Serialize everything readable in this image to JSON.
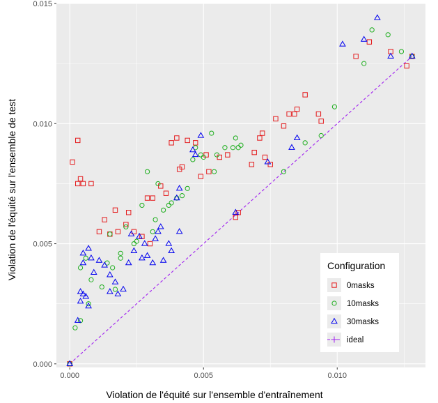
{
  "chart_data": {
    "type": "scatter",
    "xlabel": "Violation de l'équité sur l'ensemble d'entraînement",
    "ylabel": "Violation de l'équité sur l'ensemble de test",
    "xlim": [
      -0.0005,
      0.0133
    ],
    "ylim": [
      -0.00015,
      0.015
    ],
    "x_ticks": [
      0.0,
      0.005,
      0.01
    ],
    "x_tick_labels": [
      "0.000",
      "0.005",
      "0.010"
    ],
    "y_ticks": [
      0.0,
      0.005,
      0.01,
      0.015
    ],
    "y_tick_labels": [
      "0.000",
      "0.005",
      "0.010",
      "0.015"
    ],
    "grid": true,
    "legend": {
      "title": "Configuration",
      "placement": "bottom-right",
      "entries": [
        {
          "label": "0masks",
          "color": "#e41a1c",
          "shape": "square"
        },
        {
          "label": "10masks",
          "color": "#1fae1f",
          "shape": "circle"
        },
        {
          "label": "30masks",
          "color": "#0000ee",
          "shape": "triangle"
        },
        {
          "label": "ideal",
          "color": "#a020f0",
          "shape": "cross"
        }
      ]
    },
    "series": [
      {
        "name": "0masks",
        "color": "#e41a1c",
        "shape": "square",
        "points": [
          [
            0.0,
            0.0
          ],
          [
            0.0001,
            0.0084
          ],
          [
            0.0003,
            0.0093
          ],
          [
            0.0003,
            0.0075
          ],
          [
            0.0004,
            0.0077
          ],
          [
            0.0005,
            0.0075
          ],
          [
            0.0008,
            0.0075
          ],
          [
            0.0011,
            0.0055
          ],
          [
            0.0013,
            0.006
          ],
          [
            0.0015,
            0.0054
          ],
          [
            0.0017,
            0.0064
          ],
          [
            0.0018,
            0.0055
          ],
          [
            0.0021,
            0.0058
          ],
          [
            0.0022,
            0.0063
          ],
          [
            0.0024,
            0.0055
          ],
          [
            0.0027,
            0.0053
          ],
          [
            0.0029,
            0.0069
          ],
          [
            0.003,
            0.005
          ],
          [
            0.0031,
            0.0069
          ],
          [
            0.0034,
            0.0074
          ],
          [
            0.0036,
            0.0071
          ],
          [
            0.0038,
            0.0092
          ],
          [
            0.004,
            0.0094
          ],
          [
            0.0041,
            0.0081
          ],
          [
            0.0042,
            0.0082
          ],
          [
            0.0044,
            0.0093
          ],
          [
            0.0047,
            0.0092
          ],
          [
            0.0049,
            0.0078
          ],
          [
            0.0051,
            0.0087
          ],
          [
            0.0052,
            0.008
          ],
          [
            0.0056,
            0.0086
          ],
          [
            0.0059,
            0.0087
          ],
          [
            0.0062,
            0.0061
          ],
          [
            0.0063,
            0.0063
          ],
          [
            0.0068,
            0.0083
          ],
          [
            0.0069,
            0.0088
          ],
          [
            0.0071,
            0.0094
          ],
          [
            0.0072,
            0.0096
          ],
          [
            0.0073,
            0.0086
          ],
          [
            0.0075,
            0.0083
          ],
          [
            0.0077,
            0.0102
          ],
          [
            0.008,
            0.0099
          ],
          [
            0.0082,
            0.0104
          ],
          [
            0.0084,
            0.0104
          ],
          [
            0.0085,
            0.0106
          ],
          [
            0.0088,
            0.0112
          ],
          [
            0.0093,
            0.0104
          ],
          [
            0.0094,
            0.0101
          ],
          [
            0.0107,
            0.0128
          ],
          [
            0.0112,
            0.0134
          ],
          [
            0.012,
            0.013
          ],
          [
            0.0126,
            0.0124
          ],
          [
            0.0128,
            0.0128
          ]
        ]
      },
      {
        "name": "10masks",
        "color": "#1fae1f",
        "shape": "circle",
        "points": [
          [
            0.0,
            0.0
          ],
          [
            0.0002,
            0.0015
          ],
          [
            0.0004,
            0.0018
          ],
          [
            0.0004,
            0.004
          ],
          [
            0.0006,
            0.0044
          ],
          [
            0.0007,
            0.0025
          ],
          [
            0.0008,
            0.0035
          ],
          [
            0.0012,
            0.0032
          ],
          [
            0.0014,
            0.0042
          ],
          [
            0.0015,
            0.0054
          ],
          [
            0.0016,
            0.004
          ],
          [
            0.0017,
            0.0031
          ],
          [
            0.0019,
            0.0044
          ],
          [
            0.0019,
            0.0046
          ],
          [
            0.0021,
            0.0057
          ],
          [
            0.0024,
            0.005
          ],
          [
            0.0025,
            0.0051
          ],
          [
            0.0027,
            0.0066
          ],
          [
            0.0029,
            0.008
          ],
          [
            0.0031,
            0.0055
          ],
          [
            0.0032,
            0.006
          ],
          [
            0.0033,
            0.0075
          ],
          [
            0.0035,
            0.0064
          ],
          [
            0.0037,
            0.0066
          ],
          [
            0.0038,
            0.0067
          ],
          [
            0.004,
            0.0069
          ],
          [
            0.0042,
            0.007
          ],
          [
            0.0044,
            0.0073
          ],
          [
            0.0046,
            0.0085
          ],
          [
            0.0047,
            0.009
          ],
          [
            0.0049,
            0.0087
          ],
          [
            0.005,
            0.0086
          ],
          [
            0.0053,
            0.0096
          ],
          [
            0.0054,
            0.008
          ],
          [
            0.0055,
            0.0087
          ],
          [
            0.0058,
            0.009
          ],
          [
            0.0061,
            0.009
          ],
          [
            0.0062,
            0.0094
          ],
          [
            0.0063,
            0.009
          ],
          [
            0.0064,
            0.0091
          ],
          [
            0.008,
            0.008
          ],
          [
            0.0088,
            0.0092
          ],
          [
            0.0094,
            0.0095
          ],
          [
            0.0099,
            0.0107
          ],
          [
            0.011,
            0.0125
          ],
          [
            0.0113,
            0.0139
          ],
          [
            0.0119,
            0.0137
          ],
          [
            0.0124,
            0.013
          ],
          [
            0.0128,
            0.0128
          ]
        ]
      },
      {
        "name": "30masks",
        "color": "#0000ee",
        "shape": "triangle",
        "points": [
          [
            0.0,
            0.0
          ],
          [
            0.0003,
            0.0018
          ],
          [
            0.0004,
            0.0026
          ],
          [
            0.0004,
            0.003
          ],
          [
            0.0005,
            0.0029
          ],
          [
            0.0006,
            0.0028
          ],
          [
            0.0005,
            0.0046
          ],
          [
            0.0005,
            0.0042
          ],
          [
            0.0007,
            0.0024
          ],
          [
            0.0007,
            0.0048
          ],
          [
            0.0008,
            0.0044
          ],
          [
            0.0009,
            0.0038
          ],
          [
            0.0011,
            0.0043
          ],
          [
            0.0013,
            0.0041
          ],
          [
            0.0015,
            0.003
          ],
          [
            0.0015,
            0.0037
          ],
          [
            0.0017,
            0.0034
          ],
          [
            0.0018,
            0.0029
          ],
          [
            0.002,
            0.0031
          ],
          [
            0.0022,
            0.0042
          ],
          [
            0.0023,
            0.0054
          ],
          [
            0.0024,
            0.0047
          ],
          [
            0.0026,
            0.0053
          ],
          [
            0.0027,
            0.0044
          ],
          [
            0.0028,
            0.005
          ],
          [
            0.0029,
            0.0045
          ],
          [
            0.0031,
            0.0042
          ],
          [
            0.0032,
            0.0052
          ],
          [
            0.0033,
            0.0055
          ],
          [
            0.0034,
            0.0057
          ],
          [
            0.0035,
            0.0043
          ],
          [
            0.0037,
            0.005
          ],
          [
            0.0038,
            0.0047
          ],
          [
            0.004,
            0.0069
          ],
          [
            0.0041,
            0.0073
          ],
          [
            0.0041,
            0.0055
          ],
          [
            0.0046,
            0.0089
          ],
          [
            0.0047,
            0.0087
          ],
          [
            0.0049,
            0.0095
          ],
          [
            0.0062,
            0.0063
          ],
          [
            0.0074,
            0.0084
          ],
          [
            0.0083,
            0.009
          ],
          [
            0.0085,
            0.0094
          ],
          [
            0.0102,
            0.0133
          ],
          [
            0.011,
            0.0135
          ],
          [
            0.0115,
            0.0144
          ],
          [
            0.012,
            0.0128
          ],
          [
            0.0128,
            0.0128
          ]
        ]
      },
      {
        "name": "ideal",
        "color": "#a020f0",
        "shape": "cross",
        "style": "dashed-line",
        "points": [
          [
            0.0,
            0.0
          ],
          [
            0.0128,
            0.0128
          ]
        ]
      }
    ]
  }
}
